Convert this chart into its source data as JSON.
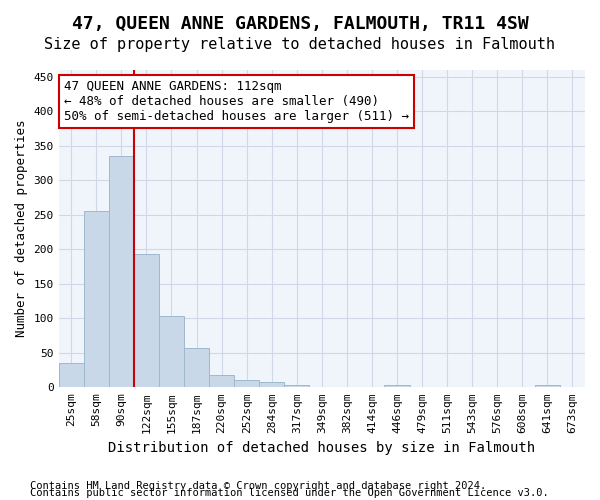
{
  "title": "47, QUEEN ANNE GARDENS, FALMOUTH, TR11 4SW",
  "subtitle": "Size of property relative to detached houses in Falmouth",
  "xlabel": "Distribution of detached houses by size in Falmouth",
  "ylabel": "Number of detached properties",
  "bins": [
    "25sqm",
    "58sqm",
    "90sqm",
    "122sqm",
    "155sqm",
    "187sqm",
    "220sqm",
    "252sqm",
    "284sqm",
    "317sqm",
    "349sqm",
    "382sqm",
    "414sqm",
    "446sqm",
    "479sqm",
    "511sqm",
    "543sqm",
    "576sqm",
    "608sqm",
    "641sqm",
    "673sqm"
  ],
  "values": [
    35,
    255,
    335,
    193,
    103,
    57,
    18,
    10,
    7,
    4,
    0,
    0,
    0,
    4,
    0,
    0,
    0,
    0,
    0,
    4,
    0
  ],
  "bar_color": "#c8d8e8",
  "bar_edge_color": "#a0b8cc",
  "bar_linewidth": 0.7,
  "vline_color": "#cc0000",
  "vline_x": 2.5,
  "annotation_text": "47 QUEEN ANNE GARDENS: 112sqm\n← 48% of detached houses are smaller (490)\n50% of semi-detached houses are larger (511) →",
  "annotation_box_color": "#ffffff",
  "annotation_box_edge": "#cc0000",
  "ylim": [
    0,
    460
  ],
  "yticks": [
    0,
    50,
    100,
    150,
    200,
    250,
    300,
    350,
    400,
    450
  ],
  "grid_color": "#d0d8e8",
  "background_color": "#f0f4fb",
  "footer_line1": "Contains HM Land Registry data © Crown copyright and database right 2024.",
  "footer_line2": "Contains public sector information licensed under the Open Government Licence v3.0.",
  "title_fontsize": 13,
  "subtitle_fontsize": 11,
  "xlabel_fontsize": 10,
  "ylabel_fontsize": 9,
  "tick_fontsize": 8,
  "annotation_fontsize": 9,
  "footer_fontsize": 7.5
}
